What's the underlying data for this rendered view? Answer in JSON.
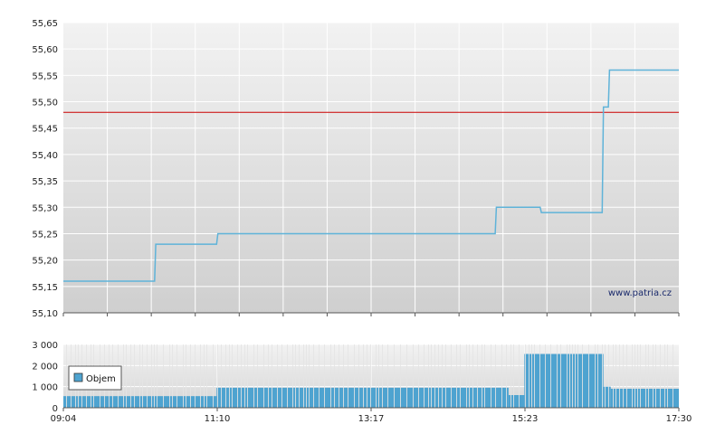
{
  "chart_data": [
    {
      "type": "line",
      "x_ticks": [
        "09:04",
        "11:10",
        "13:17",
        "15:23",
        "17:30"
      ],
      "y_ticks": [
        "55,10",
        "55,15",
        "55,20",
        "55,25",
        "55,30",
        "55,35",
        "55,40",
        "55,45",
        "55,50",
        "55,55",
        "55,60",
        "55,65"
      ],
      "ylim": [
        55.1,
        55.65
      ],
      "reference_line": 55.48,
      "watermark": "www.patria.cz",
      "series": [
        {
          "x": [
            "09:04",
            "10:19",
            "10:20",
            "11:10",
            "11:11",
            "14:59",
            "15:00",
            "15:36",
            "15:37",
            "16:27",
            "16:28",
            "16:32",
            "16:33",
            "17:30"
          ],
          "values": [
            55.16,
            55.16,
            55.23,
            55.23,
            55.25,
            55.25,
            55.3,
            55.3,
            55.29,
            55.29,
            55.49,
            55.49,
            55.56,
            55.56
          ]
        }
      ],
      "colors": {
        "price_line": "#5fb3d9",
        "reference_line": "#cc0000"
      },
      "grid": true
    },
    {
      "type": "bar",
      "y_ticks": [
        "0",
        "1 000",
        "2 000",
        "3 000"
      ],
      "ylim": [
        0,
        3000
      ],
      "x_ticks": [
        "09:04",
        "11:10",
        "13:17",
        "15:23",
        "17:30"
      ],
      "legend": {
        "label": "Objem",
        "position": "left"
      },
      "segments": [
        {
          "from": "09:04",
          "to": "11:10",
          "value": 550
        },
        {
          "from": "11:10",
          "to": "15:10",
          "value": 950
        },
        {
          "from": "15:10",
          "to": "15:23",
          "value": 600
        },
        {
          "from": "15:23",
          "to": "16:28",
          "value": 2550
        },
        {
          "from": "16:28",
          "to": "16:34",
          "value": 1000
        },
        {
          "from": "16:34",
          "to": "17:30",
          "value": 900
        }
      ],
      "colors": {
        "bar": "#4ea3d0"
      },
      "grid": true
    }
  ]
}
